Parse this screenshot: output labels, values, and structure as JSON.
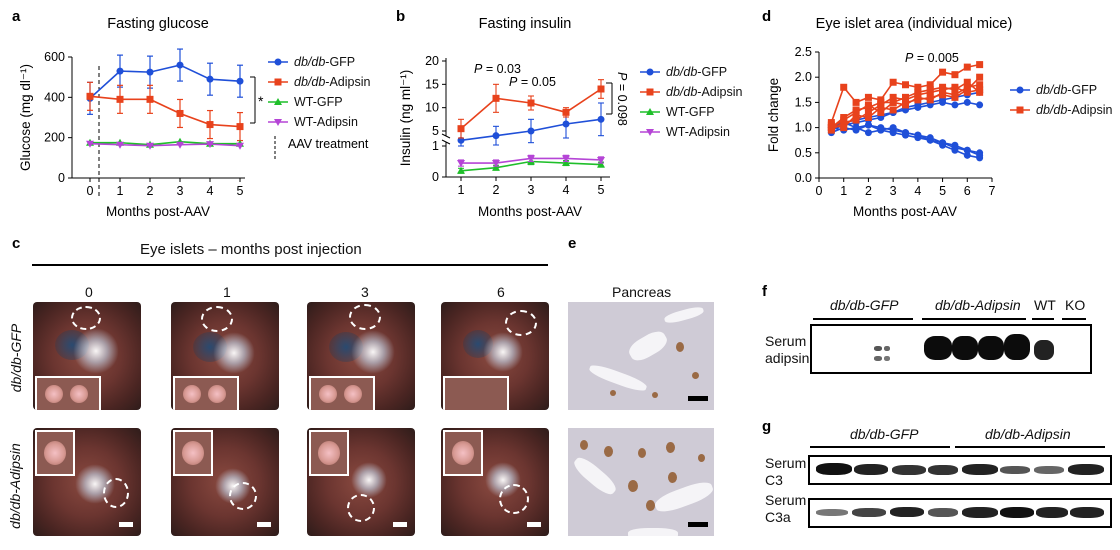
{
  "panels": {
    "a": {
      "letter": "a",
      "chart_data": {
        "type": "line",
        "title": "Fasting glucose",
        "xlabel": "Months post-AAV",
        "ylabel": "Glucose (mg dl⁻¹)",
        "x": [
          0,
          1,
          2,
          3,
          4,
          5
        ],
        "ylim": [
          0,
          600
        ],
        "yticks": [
          0,
          200,
          400,
          600
        ],
        "series": [
          {
            "name": "db/db-GFP",
            "color": "#1f4fd8",
            "marker": "circle",
            "values": [
              395,
              530,
              525,
              560,
              490,
              480
            ]
          },
          {
            "name": "db/db-Adipsin",
            "color": "#e8421c",
            "marker": "square",
            "values": [
              405,
              390,
              390,
              320,
              265,
              255
            ]
          },
          {
            "name": "WT-GFP",
            "color": "#1fbf2a",
            "marker": "triangle",
            "values": [
              175,
              175,
              165,
              180,
              170,
              170
            ]
          },
          {
            "name": "WT-Adipsin",
            "color": "#b545d6",
            "marker": "triangle-down",
            "values": [
              170,
              165,
              160,
              165,
              168,
              160
            ]
          }
        ],
        "annotations": [
          "*",
          "AAV treatment"
        ]
      }
    },
    "b": {
      "letter": "b",
      "chart_data": {
        "type": "line",
        "title": "Fasting insulin",
        "xlabel": "Months post-AAV",
        "ylabel": "Insulin (ng ml⁻¹)",
        "x": [
          1,
          2,
          3,
          4,
          5
        ],
        "yticks": [
          0,
          1,
          5,
          10,
          15,
          20
        ],
        "axis_break": true,
        "series": [
          {
            "name": "db/db-GFP",
            "color": "#1f4fd8",
            "marker": "circle",
            "values": [
              3,
              4,
              5,
              6.5,
              7.5
            ]
          },
          {
            "name": "db/db-Adipsin",
            "color": "#e8421c",
            "marker": "square",
            "values": [
              5.5,
              12,
              11,
              9,
              14
            ]
          },
          {
            "name": "WT-GFP",
            "color": "#1fbf2a",
            "marker": "triangle",
            "values": [
              0.2,
              0.3,
              0.5,
              0.45,
              0.4
            ]
          },
          {
            "name": "WT-Adipsin",
            "color": "#b545d6",
            "marker": "triangle-down",
            "values": [
              0.45,
              0.45,
              0.6,
              0.6,
              0.55
            ]
          }
        ],
        "annotations": [
          "P = 0.03",
          "P = 0.05",
          "P = 0.098"
        ]
      }
    },
    "d": {
      "letter": "d",
      "chart_data": {
        "type": "line",
        "title": "Eye islet area (individual mice)",
        "xlabel": "Months post-AAV",
        "ylabel": "Fold change",
        "xlim": [
          0,
          7
        ],
        "xticks": [
          0,
          1,
          2,
          3,
          4,
          5,
          6,
          7
        ],
        "ylim": [
          0,
          2.5
        ],
        "yticks": [
          0,
          0.5,
          1.0,
          1.5,
          2.0,
          2.5
        ],
        "x": [
          0.5,
          1,
          1.5,
          2,
          2.5,
          3,
          3.5,
          4,
          4.5,
          5,
          5.5,
          6,
          6.5
        ],
        "series": [
          {
            "name": "db/db-GFP",
            "color": "#1f4fd8",
            "marker": "circle",
            "lines": [
              [
                1.0,
                1.1,
                1.15,
                1.2,
                1.25,
                1.3,
                1.35,
                1.4,
                1.45,
                1.5,
                1.45,
                1.5,
                1.45
              ],
              [
                0.95,
                1.05,
                1.1,
                1.15,
                1.2,
                1.3,
                1.4,
                1.45,
                1.5,
                1.55,
                1.6,
                1.65,
                1.7
              ],
              [
                0.9,
                1.0,
                0.95,
                1.05,
                1.0,
                0.95,
                0.9,
                0.85,
                0.8,
                0.7,
                0.65,
                0.55,
                0.5
              ],
              [
                1.0,
                0.95,
                1.0,
                0.9,
                0.95,
                0.9,
                0.85,
                0.8,
                0.75,
                0.65,
                0.55,
                0.45,
                0.4
              ],
              [
                1.05,
                1.1,
                1.0,
                1.05,
                0.95,
                1.0,
                0.9,
                0.85,
                0.75,
                0.7,
                0.6,
                0.55,
                0.45
              ]
            ]
          },
          {
            "name": "db/db-Adipsin",
            "color": "#e8421c",
            "marker": "square",
            "lines": [
              [
                1.1,
                1.8,
                1.5,
                1.6,
                1.55,
                1.9,
                1.85,
                1.8,
                1.85,
                2.1,
                2.05,
                2.2,
                2.25
              ],
              [
                1.0,
                1.2,
                1.35,
                1.4,
                1.5,
                1.5,
                1.6,
                1.7,
                1.75,
                1.8,
                1.75,
                1.9,
                1.7
              ],
              [
                0.95,
                1.1,
                1.15,
                1.3,
                1.45,
                1.6,
                1.55,
                1.65,
                1.7,
                1.75,
                1.8,
                1.7,
                1.75
              ],
              [
                1.05,
                1.0,
                1.25,
                1.2,
                1.4,
                1.35,
                1.5,
                1.55,
                1.6,
                1.65,
                1.6,
                1.75,
                2.0
              ],
              [
                1.0,
                1.15,
                1.3,
                1.45,
                1.3,
                1.5,
                1.45,
                1.6,
                1.55,
                1.7,
                1.65,
                1.8,
                1.85
              ]
            ]
          }
        ],
        "annotations": [
          "P = 0.005"
        ]
      }
    },
    "c": {
      "letter": "c",
      "header": "Eye islets – months post injection",
      "columns": [
        "0",
        "1",
        "3",
        "6"
      ],
      "rows": [
        "db/db-GFP",
        "db/db-Adipsin"
      ]
    },
    "e": {
      "letter": "e",
      "title": "Pancreas"
    },
    "f": {
      "letter": "f",
      "groups": [
        "db/db-GFP",
        "db/db-Adipsin",
        "WT",
        "KO"
      ],
      "row_label_line1": "Serum",
      "row_label_line2": "adipsin"
    },
    "g": {
      "letter": "g",
      "groups": [
        "db/db-GFP",
        "db/db-Adipsin"
      ],
      "rows": [
        {
          "line1": "Serum",
          "line2": "C3"
        },
        {
          "line1": "Serum",
          "line2": "C3a"
        }
      ]
    }
  }
}
